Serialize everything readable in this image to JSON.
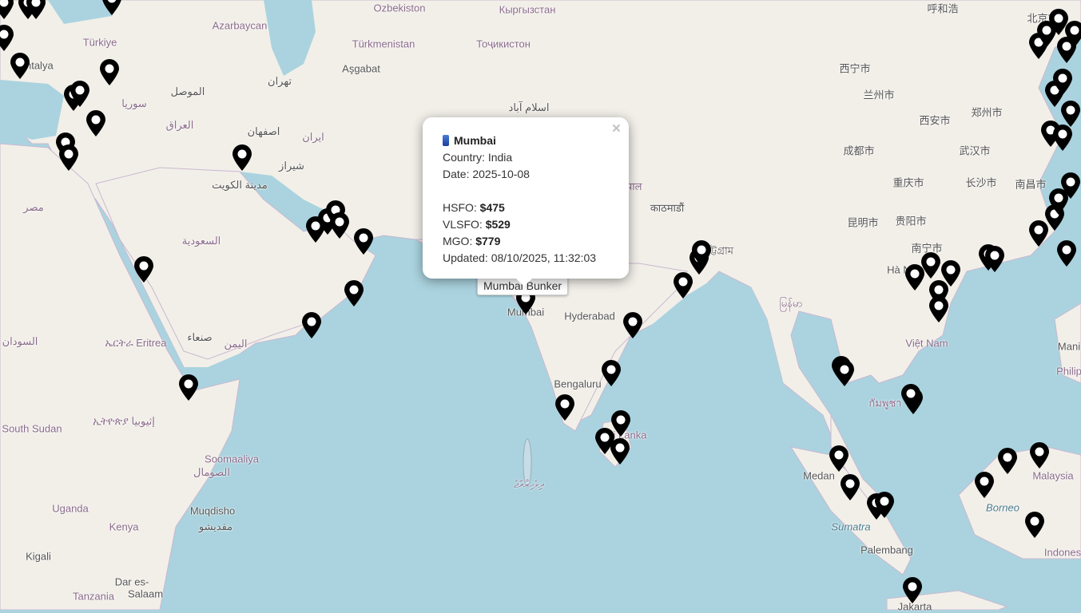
{
  "map": {
    "colors": {
      "water": "#aad3df",
      "land": "#f2efe9",
      "border": "#b9a3c4",
      "marker": "#000000"
    },
    "labels": [
      {
        "text": "Ozbekiston",
        "kind": "country"
      },
      {
        "text": "Кыргызстан",
        "kind": "country"
      },
      {
        "text": "呼和浩",
        "kind": "city"
      },
      {
        "text": "Türkiye",
        "kind": "country"
      },
      {
        "text": "Azarbaycan",
        "kind": "country"
      },
      {
        "text": "Türkmenistan",
        "kind": "country"
      },
      {
        "text": "Тоҷикистон",
        "kind": "country"
      },
      {
        "text": "北京市",
        "kind": "city"
      },
      {
        "text": "Antalya",
        "kind": "city"
      },
      {
        "text": "Aşgabat",
        "kind": "city"
      },
      {
        "text": "تهران",
        "kind": "city"
      },
      {
        "text": "سوريا",
        "kind": "country"
      },
      {
        "text": "الموصل",
        "kind": "city"
      },
      {
        "text": "العراق",
        "kind": "country"
      },
      {
        "text": "اصفهان",
        "kind": "city"
      },
      {
        "text": "ایران",
        "kind": "country"
      },
      {
        "text": "شیراز",
        "kind": "city"
      },
      {
        "text": "مدينة الكويت",
        "kind": "city"
      },
      {
        "text": "مصر",
        "kind": "country"
      },
      {
        "text": "السعودية",
        "kind": "country"
      },
      {
        "text": "اسلام آباد",
        "kind": "city"
      },
      {
        "text": "西宁市",
        "kind": "city"
      },
      {
        "text": "兰州市",
        "kind": "city"
      },
      {
        "text": "西安市",
        "kind": "city"
      },
      {
        "text": "郑州市",
        "kind": "city"
      },
      {
        "text": "成都市",
        "kind": "city"
      },
      {
        "text": "武汉市",
        "kind": "city"
      },
      {
        "text": "重庆市",
        "kind": "city"
      },
      {
        "text": "长沙市",
        "kind": "city"
      },
      {
        "text": "南昌市",
        "kind": "city"
      },
      {
        "text": "昆明市",
        "kind": "city"
      },
      {
        "text": "贵阳市",
        "kind": "city"
      },
      {
        "text": "南宁市",
        "kind": "city"
      },
      {
        "text": "नेपाल",
        "kind": "country"
      },
      {
        "text": "काठमाडौं",
        "kind": "city"
      },
      {
        "text": "চট্টগ্রাম",
        "kind": "city"
      },
      {
        "text": "Hyderabad",
        "kind": "city"
      },
      {
        "text": "Mumbai",
        "kind": "city"
      },
      {
        "text": "Bengaluru",
        "kind": "city"
      },
      {
        "text": "Sri Lanka",
        "kind": "country"
      },
      {
        "text": "မြန်မာ",
        "kind": "country"
      },
      {
        "text": "Việt Nam",
        "kind": "country"
      },
      {
        "text": "ኤርትራ Eritrea",
        "kind": "country"
      },
      {
        "text": "صنعاء",
        "kind": "city"
      },
      {
        "text": "اليمن",
        "kind": "country"
      },
      {
        "text": "السودان",
        "kind": "country"
      },
      {
        "text": "ኢትዮጵያ إثيوبيا",
        "kind": "country"
      },
      {
        "text": "South Sudan",
        "kind": "country"
      },
      {
        "text": "Soomaaliya",
        "kind": "country"
      },
      {
        "text": "الصومال",
        "kind": "country"
      },
      {
        "text": "Uganda",
        "kind": "country"
      },
      {
        "text": "Kenya",
        "kind": "country"
      },
      {
        "text": "Muqdisho",
        "kind": "city"
      },
      {
        "text": "مقديشو",
        "kind": "city"
      },
      {
        "text": "Kigali",
        "kind": "city"
      },
      {
        "text": "Dar es-",
        "kind": "city"
      },
      {
        "text": "Salaam",
        "kind": "city"
      },
      {
        "text": "Tanzania",
        "kind": "country"
      },
      {
        "text": "ދިވެހިރާއްޖެ",
        "kind": "country"
      },
      {
        "text": "Medan",
        "kind": "city"
      },
      {
        "text": "Sumatra",
        "kind": "water"
      },
      {
        "text": "Palembang",
        "kind": "city"
      },
      {
        "text": "Borneo",
        "kind": "water"
      },
      {
        "text": "Malaysia",
        "kind": "country"
      },
      {
        "text": "Indones",
        "kind": "country"
      },
      {
        "text": "Jakarta",
        "kind": "city"
      },
      {
        "text": "Philip",
        "kind": "country"
      },
      {
        "text": "Mani",
        "kind": "city"
      },
      {
        "text": "Hà Nội",
        "kind": "city"
      },
      {
        "text": "กัมพูชา",
        "kind": "country"
      }
    ]
  },
  "popup": {
    "title": "Mumbai",
    "icon": "oil-barrel-icon",
    "country_label": "Country:",
    "country": "India",
    "date_label": "Date:",
    "date": "2025-10-08",
    "hsfo_label": "HSFO:",
    "hsfo": "$475",
    "vlsfo_label": "VLSFO:",
    "vlsfo": "$529",
    "mgo_label": "MGO:",
    "mgo": "$779",
    "updated_label": "Updated:",
    "updated": "08/10/2025, 11:32:03",
    "close": "×"
  },
  "tooltip": {
    "text": "Mumbai Bunker"
  }
}
